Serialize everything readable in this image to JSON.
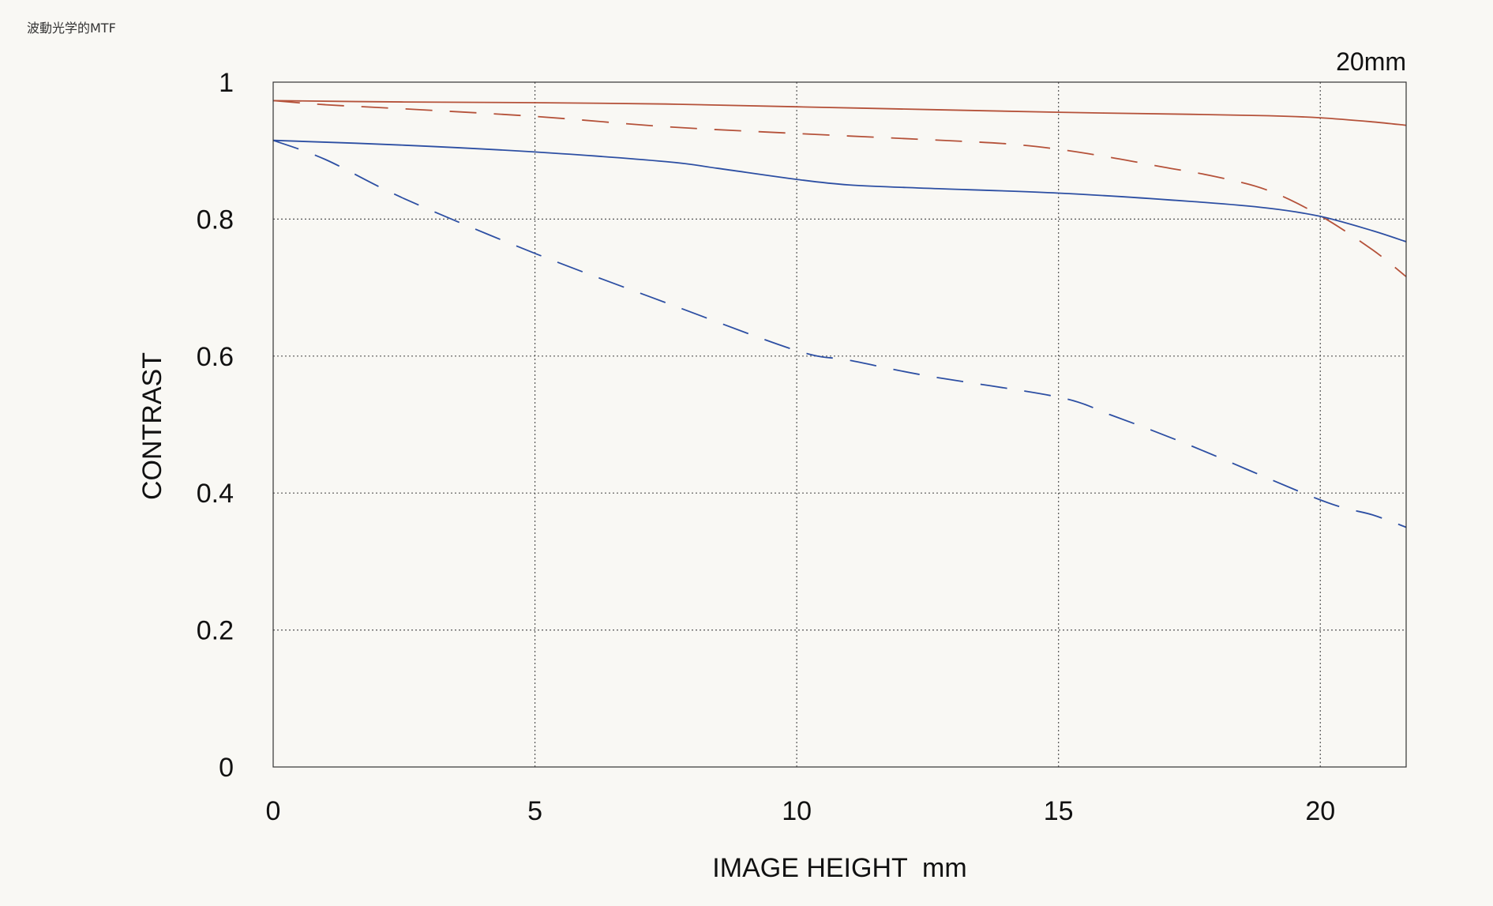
{
  "caption": "波動光学的MTF",
  "chart_data": {
    "type": "line",
    "title": "20mm",
    "xlabel": "IMAGE HEIGHT  mm",
    "ylabel": "CONTRAST",
    "xlim": [
      0,
      21.64
    ],
    "ylim": [
      0,
      1
    ],
    "x_ticks": [
      0,
      5,
      10,
      15,
      20
    ],
    "x_tick_labels": [
      "0",
      "5",
      "10",
      "15",
      "20"
    ],
    "y_ticks": [
      0,
      0.2,
      0.4,
      0.6,
      0.8,
      1
    ],
    "y_tick_labels": [
      "0",
      "0.2",
      "0.4",
      "0.6",
      "0.8",
      "1"
    ],
    "grid": true,
    "legend": "none",
    "series": [
      {
        "color": "#b5523a",
        "dash": "solid",
        "points": [
          [
            0,
            0.973
          ],
          [
            2.5,
            0.971
          ],
          [
            5,
            0.97
          ],
          [
            7.5,
            0.968
          ],
          [
            10,
            0.964
          ],
          [
            12.5,
            0.96
          ],
          [
            15,
            0.956
          ],
          [
            17.5,
            0.953
          ],
          [
            19,
            0.951
          ],
          [
            20,
            0.948
          ],
          [
            21,
            0.942
          ],
          [
            21.64,
            0.937
          ]
        ]
      },
      {
        "color": "#b5523a",
        "dash": "dashed",
        "points": [
          [
            0,
            0.973
          ],
          [
            1,
            0.967
          ],
          [
            2.5,
            0.961
          ],
          [
            5,
            0.95
          ],
          [
            7.5,
            0.935
          ],
          [
            10,
            0.925
          ],
          [
            12.5,
            0.916
          ],
          [
            14,
            0.91
          ],
          [
            15,
            0.902
          ],
          [
            16,
            0.89
          ],
          [
            17,
            0.876
          ],
          [
            18,
            0.862
          ],
          [
            19,
            0.842
          ],
          [
            20,
            0.805
          ],
          [
            21,
            0.755
          ],
          [
            21.64,
            0.716
          ]
        ]
      },
      {
        "color": "#2d4fa3",
        "dash": "solid",
        "points": [
          [
            0,
            0.915
          ],
          [
            2.5,
            0.908
          ],
          [
            5,
            0.898
          ],
          [
            7.5,
            0.884
          ],
          [
            8.5,
            0.874
          ],
          [
            10,
            0.858
          ],
          [
            11,
            0.85
          ],
          [
            12.5,
            0.845
          ],
          [
            15,
            0.838
          ],
          [
            17.5,
            0.826
          ],
          [
            19,
            0.816
          ],
          [
            20,
            0.804
          ],
          [
            21,
            0.783
          ],
          [
            21.64,
            0.767
          ]
        ]
      },
      {
        "color": "#2d4fa3",
        "dash": "dashed",
        "points": [
          [
            0,
            0.915
          ],
          [
            1,
            0.887
          ],
          [
            2.5,
            0.83
          ],
          [
            5,
            0.75
          ],
          [
            7.5,
            0.678
          ],
          [
            10,
            0.608
          ],
          [
            11,
            0.594
          ],
          [
            12.5,
            0.571
          ],
          [
            15,
            0.54
          ],
          [
            16,
            0.514
          ],
          [
            17.5,
            0.47
          ],
          [
            20,
            0.39
          ],
          [
            21,
            0.368
          ],
          [
            21.64,
            0.35
          ]
        ]
      }
    ]
  }
}
